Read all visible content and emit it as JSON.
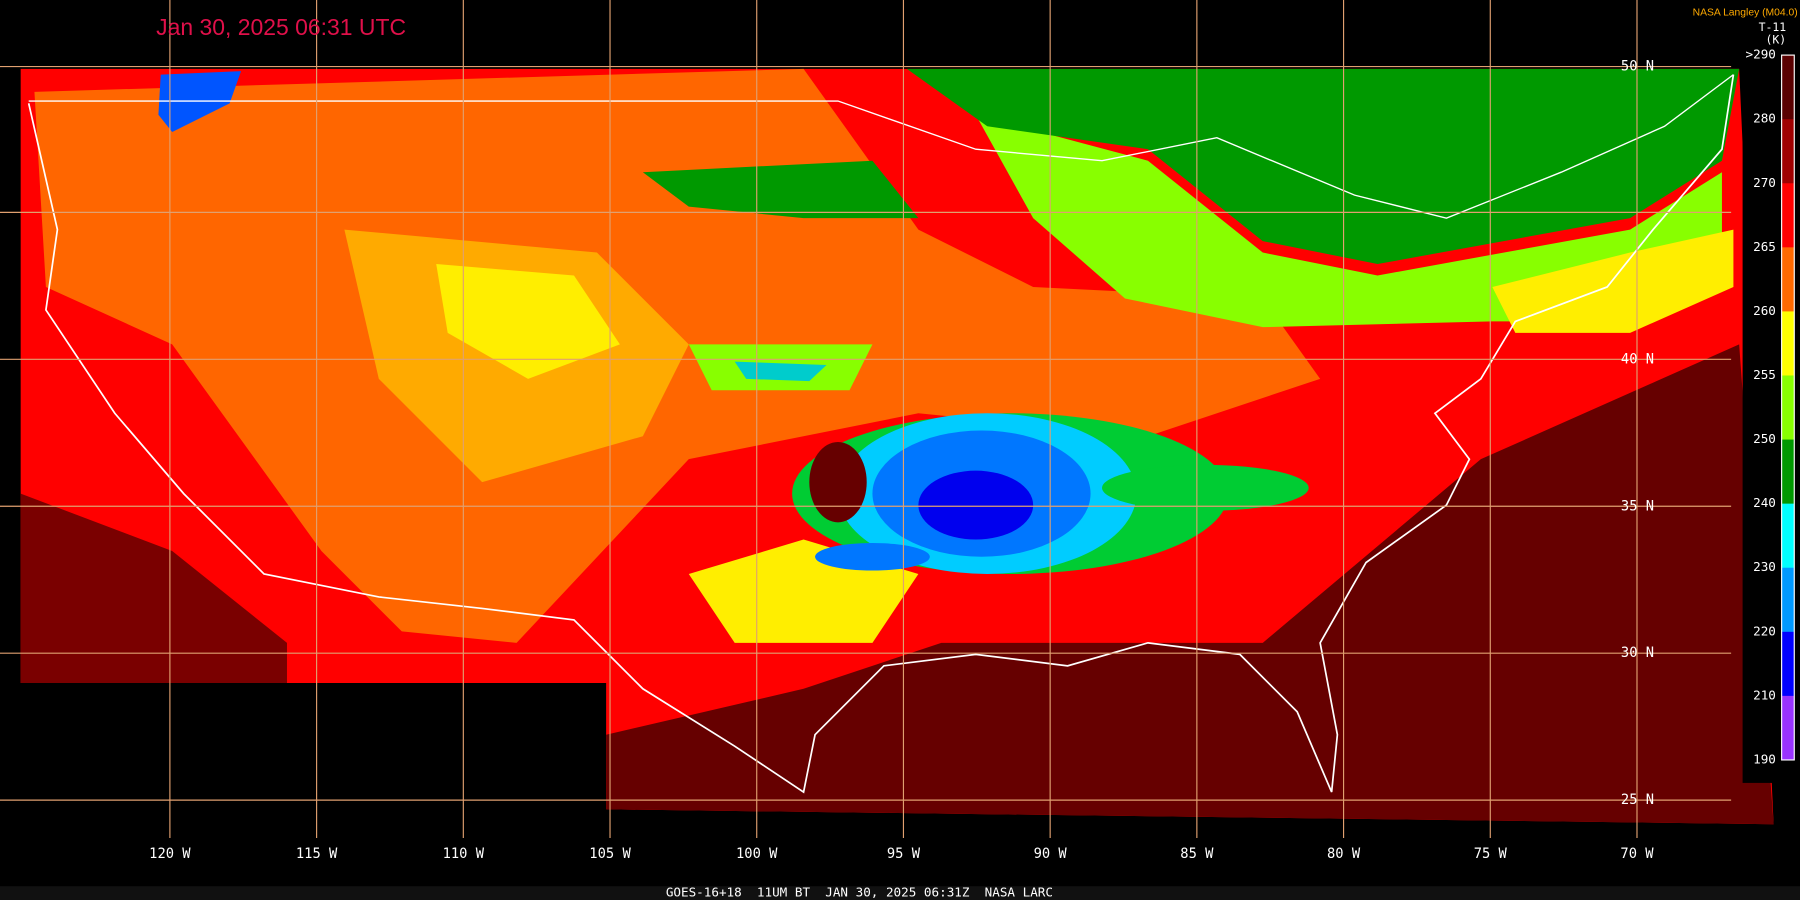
{
  "title": "Jan 30, 2025 06:31 UTC",
  "credit": "NASA Langley (M04.0)",
  "colorbar": {
    "title": "T-11",
    "unit": "(K)",
    "labels": [
      ">290",
      "280",
      "270",
      "265",
      "260",
      "255",
      "250",
      "240",
      "230",
      "220",
      "210",
      "190"
    ],
    "colors": [
      "#5a0000",
      "#a00000",
      "#ff0000",
      "#ff6a00",
      "#ffff00",
      "#88ff00",
      "#009900",
      "#00ffff",
      "#0099ff",
      "#0000ff",
      "#9933ff"
    ]
  },
  "latitude_labels": [
    "50 N",
    "40 N",
    "35 N",
    "30 N",
    "25 N"
  ],
  "longitude_labels": [
    "120 W",
    "115 W",
    "110 W",
    "105 W",
    "100 W",
    "95 W",
    "90 W",
    "85 W",
    "80 W",
    "75 W",
    "70 W"
  ],
  "footer": "GOES-16+18  11UM BT  JAN 30, 2025 06:31Z  NASA LARC"
}
